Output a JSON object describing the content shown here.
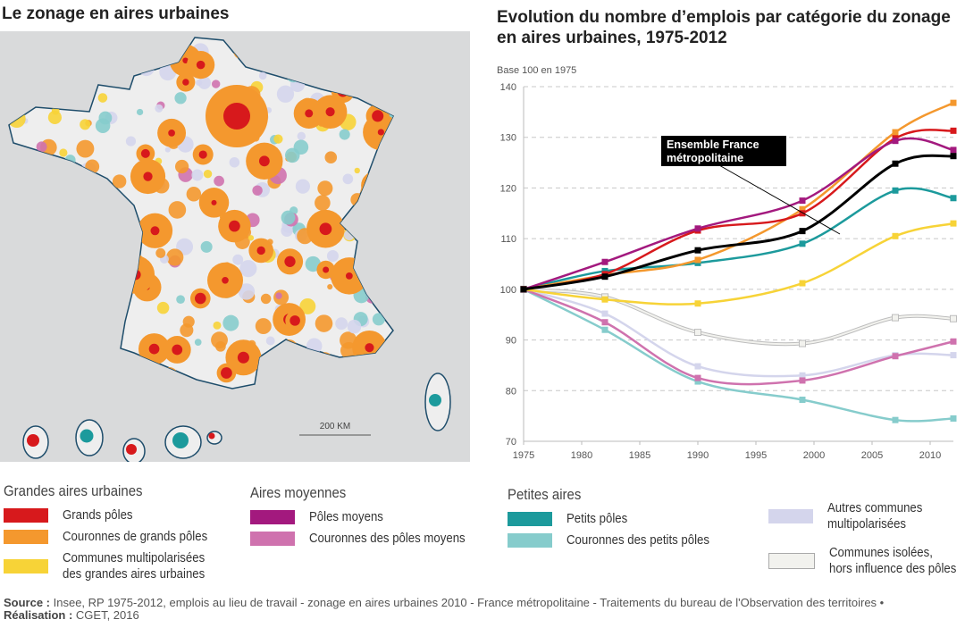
{
  "map": {
    "title": "Le zonage en aires urbaines",
    "scale_label": "200 KM",
    "background_color": "#d9dadb",
    "land_color": "#eeeeee",
    "border_color": "#1e4d6b"
  },
  "chart_data": {
    "type": "line",
    "title": "Evolution du nombre d’emplois par catégorie du zonage en aires urbaines, 1975-2012",
    "ylabel": "Base 100 en 1975",
    "xlabel": "",
    "xlim": [
      1975,
      2012
    ],
    "ylim": [
      70,
      140
    ],
    "xticks": [
      1975,
      1980,
      1985,
      1990,
      1995,
      2000,
      2005,
      2010
    ],
    "yticks": [
      70,
      80,
      90,
      100,
      110,
      120,
      130,
      140
    ],
    "grid": "horizontal dashed",
    "x": [
      1975,
      1982,
      1990,
      1999,
      2007,
      2012
    ],
    "annotation": "Ensemble France métropolitaine",
    "series": [
      {
        "name": "Grands pôles",
        "color": "#d7191c",
        "values": [
          100,
          103.0,
          111.6,
          115.0,
          129.8,
          131.3
        ]
      },
      {
        "name": "Couronnes de grands pôles",
        "color": "#f4982e",
        "values": [
          100,
          102.8,
          105.8,
          115.8,
          131.0,
          136.8
        ]
      },
      {
        "name": "Communes multipolarisées des grandes aires urbaines",
        "color": "#f7d337",
        "values": [
          100,
          98.0,
          97.2,
          101.2,
          110.5,
          113.0
        ]
      },
      {
        "name": "Pôles moyens",
        "color": "#a3197e",
        "values": [
          100,
          105.4,
          112.0,
          117.5,
          129.3,
          127.5
        ]
      },
      {
        "name": "Couronnes des pôles moyens",
        "color": "#cf72ae",
        "values": [
          100,
          93.5,
          82.5,
          82.0,
          86.8,
          89.7
        ]
      },
      {
        "name": "Petits pôles",
        "color": "#1c9a9c",
        "values": [
          100,
          103.6,
          105.2,
          109.0,
          119.5,
          118.0
        ]
      },
      {
        "name": "Couronnes des petits pôles",
        "color": "#86cccc",
        "values": [
          100,
          92.0,
          81.8,
          78.2,
          74.2,
          74.5
        ]
      },
      {
        "name": "Autres communes multipolarisées",
        "color": "#d4d5ec",
        "values": [
          100,
          95.2,
          84.8,
          83.0,
          87.0,
          87.0
        ]
      },
      {
        "name": "Communes isolées, hors influence des pôles",
        "color": "#f2f2ee",
        "values": [
          100,
          98.5,
          91.5,
          89.3,
          94.4,
          94.2
        ]
      },
      {
        "name": "Ensemble France métropolitaine",
        "color": "#000000",
        "values": [
          100,
          102.5,
          107.7,
          111.5,
          124.8,
          126.3
        ]
      }
    ]
  },
  "legend": {
    "groups": [
      {
        "title": "Grandes aires urbaines",
        "items": [
          {
            "label": "Grands pôles",
            "color": "#d7191c"
          },
          {
            "label": "Couronnes de grands pôles",
            "color": "#f4982e"
          },
          {
            "label": "Communes multipolarisées\ndes grandes aires urbaines",
            "color": "#f7d337"
          }
        ]
      },
      {
        "title": "Aires moyennes",
        "items": [
          {
            "label": "Pôles moyens",
            "color": "#a3197e"
          },
          {
            "label": "Couronnes des pôles moyens",
            "color": "#cf72ae"
          }
        ]
      },
      {
        "title": "Petites aires",
        "items": [
          {
            "label": "Petits pôles",
            "color": "#1c9a9c"
          },
          {
            "label": "Couronnes des petits pôles",
            "color": "#86cccc"
          }
        ]
      },
      {
        "title": "",
        "items": [
          {
            "label": "Autres communes\nmultipolarisées",
            "color": "#d4d5ec"
          },
          {
            "label": "Communes isolées,\nhors influence des pôles",
            "color": "#f2f2ee"
          }
        ]
      }
    ]
  },
  "source": {
    "source_label": "Source :",
    "source_text": " Insee, RP 1975-2012, emplois au lieu de travail - zonage en aires urbaines 2010 - France métropolitaine - Traitements du bureau de l'Observation des territoires • ",
    "credit_label": "Réalisation :",
    "credit_text": " CGET, 2016"
  }
}
